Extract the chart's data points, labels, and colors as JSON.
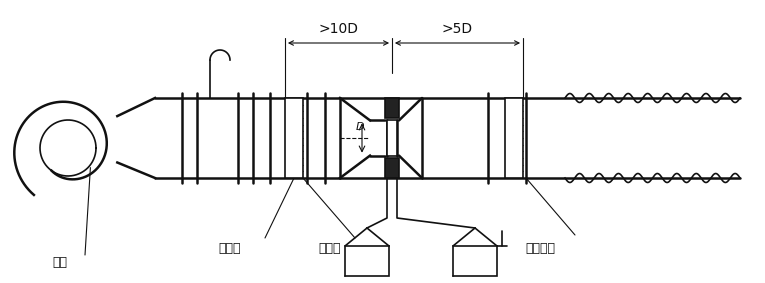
{
  "fig_width": 7.65,
  "fig_height": 2.83,
  "dpi": 100,
  "bg_color": "#ffffff",
  "line_color": "#111111",
  "labels": {
    "fan": "风机",
    "throttle": "节流器",
    "straightener": "整流栅",
    "pressure": "测压仪器",
    "dim1": ">10D",
    "dim2": ">5D",
    "D": "D"
  }
}
